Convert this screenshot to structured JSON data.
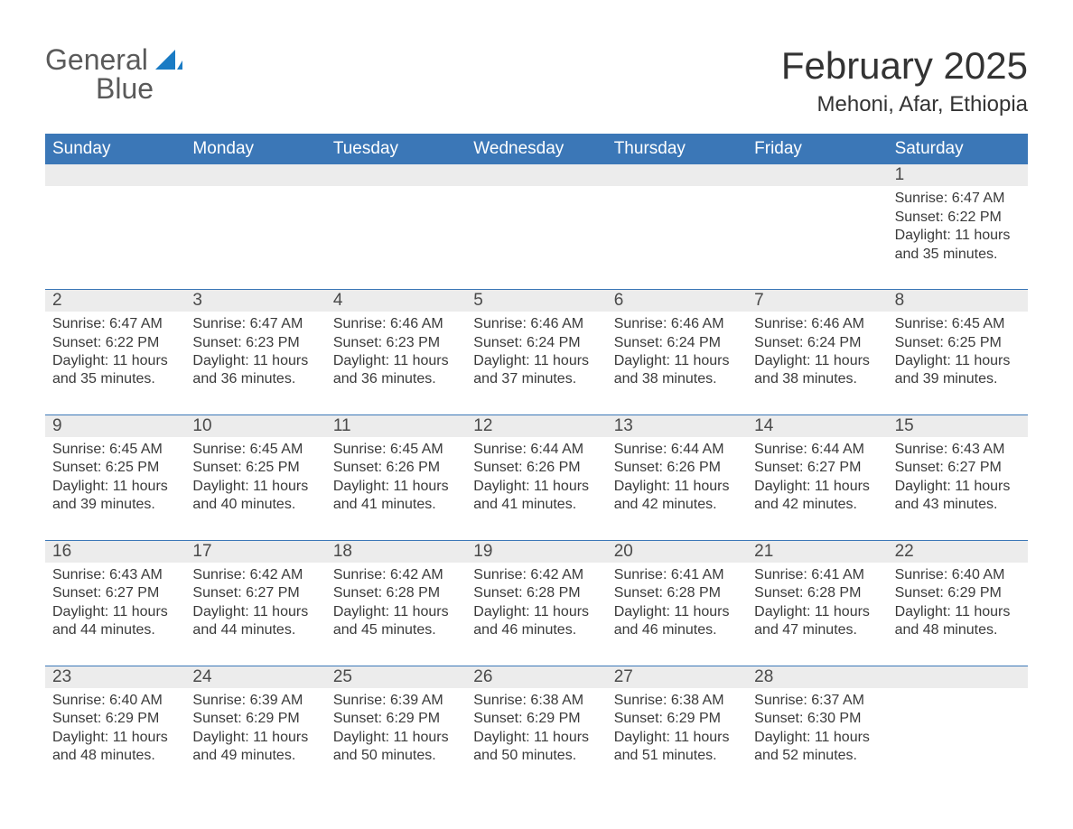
{
  "logo": {
    "word1": "General",
    "word2": "Blue"
  },
  "header": {
    "month_title": "February 2025",
    "location": "Mehoni, Afar, Ethiopia"
  },
  "colors": {
    "header_blue": "#3b77b7",
    "logo_blue": "#1a7bc4",
    "row_gray": "#ececec",
    "text": "#3a3a3a",
    "white": "#ffffff"
  },
  "days_of_week": [
    "Sunday",
    "Monday",
    "Tuesday",
    "Wednesday",
    "Thursday",
    "Friday",
    "Saturday"
  ],
  "weeks": [
    [
      null,
      null,
      null,
      null,
      null,
      null,
      {
        "n": "1",
        "sunrise": "Sunrise: 6:47 AM",
        "sunset": "Sunset: 6:22 PM",
        "daylight1": "Daylight: 11 hours",
        "daylight2": "and 35 minutes."
      }
    ],
    [
      {
        "n": "2",
        "sunrise": "Sunrise: 6:47 AM",
        "sunset": "Sunset: 6:22 PM",
        "daylight1": "Daylight: 11 hours",
        "daylight2": "and 35 minutes."
      },
      {
        "n": "3",
        "sunrise": "Sunrise: 6:47 AM",
        "sunset": "Sunset: 6:23 PM",
        "daylight1": "Daylight: 11 hours",
        "daylight2": "and 36 minutes."
      },
      {
        "n": "4",
        "sunrise": "Sunrise: 6:46 AM",
        "sunset": "Sunset: 6:23 PM",
        "daylight1": "Daylight: 11 hours",
        "daylight2": "and 36 minutes."
      },
      {
        "n": "5",
        "sunrise": "Sunrise: 6:46 AM",
        "sunset": "Sunset: 6:24 PM",
        "daylight1": "Daylight: 11 hours",
        "daylight2": "and 37 minutes."
      },
      {
        "n": "6",
        "sunrise": "Sunrise: 6:46 AM",
        "sunset": "Sunset: 6:24 PM",
        "daylight1": "Daylight: 11 hours",
        "daylight2": "and 38 minutes."
      },
      {
        "n": "7",
        "sunrise": "Sunrise: 6:46 AM",
        "sunset": "Sunset: 6:24 PM",
        "daylight1": "Daylight: 11 hours",
        "daylight2": "and 38 minutes."
      },
      {
        "n": "8",
        "sunrise": "Sunrise: 6:45 AM",
        "sunset": "Sunset: 6:25 PM",
        "daylight1": "Daylight: 11 hours",
        "daylight2": "and 39 minutes."
      }
    ],
    [
      {
        "n": "9",
        "sunrise": "Sunrise: 6:45 AM",
        "sunset": "Sunset: 6:25 PM",
        "daylight1": "Daylight: 11 hours",
        "daylight2": "and 39 minutes."
      },
      {
        "n": "10",
        "sunrise": "Sunrise: 6:45 AM",
        "sunset": "Sunset: 6:25 PM",
        "daylight1": "Daylight: 11 hours",
        "daylight2": "and 40 minutes."
      },
      {
        "n": "11",
        "sunrise": "Sunrise: 6:45 AM",
        "sunset": "Sunset: 6:26 PM",
        "daylight1": "Daylight: 11 hours",
        "daylight2": "and 41 minutes."
      },
      {
        "n": "12",
        "sunrise": "Sunrise: 6:44 AM",
        "sunset": "Sunset: 6:26 PM",
        "daylight1": "Daylight: 11 hours",
        "daylight2": "and 41 minutes."
      },
      {
        "n": "13",
        "sunrise": "Sunrise: 6:44 AM",
        "sunset": "Sunset: 6:26 PM",
        "daylight1": "Daylight: 11 hours",
        "daylight2": "and 42 minutes."
      },
      {
        "n": "14",
        "sunrise": "Sunrise: 6:44 AM",
        "sunset": "Sunset: 6:27 PM",
        "daylight1": "Daylight: 11 hours",
        "daylight2": "and 42 minutes."
      },
      {
        "n": "15",
        "sunrise": "Sunrise: 6:43 AM",
        "sunset": "Sunset: 6:27 PM",
        "daylight1": "Daylight: 11 hours",
        "daylight2": "and 43 minutes."
      }
    ],
    [
      {
        "n": "16",
        "sunrise": "Sunrise: 6:43 AM",
        "sunset": "Sunset: 6:27 PM",
        "daylight1": "Daylight: 11 hours",
        "daylight2": "and 44 minutes."
      },
      {
        "n": "17",
        "sunrise": "Sunrise: 6:42 AM",
        "sunset": "Sunset: 6:27 PM",
        "daylight1": "Daylight: 11 hours",
        "daylight2": "and 44 minutes."
      },
      {
        "n": "18",
        "sunrise": "Sunrise: 6:42 AM",
        "sunset": "Sunset: 6:28 PM",
        "daylight1": "Daylight: 11 hours",
        "daylight2": "and 45 minutes."
      },
      {
        "n": "19",
        "sunrise": "Sunrise: 6:42 AM",
        "sunset": "Sunset: 6:28 PM",
        "daylight1": "Daylight: 11 hours",
        "daylight2": "and 46 minutes."
      },
      {
        "n": "20",
        "sunrise": "Sunrise: 6:41 AM",
        "sunset": "Sunset: 6:28 PM",
        "daylight1": "Daylight: 11 hours",
        "daylight2": "and 46 minutes."
      },
      {
        "n": "21",
        "sunrise": "Sunrise: 6:41 AM",
        "sunset": "Sunset: 6:28 PM",
        "daylight1": "Daylight: 11 hours",
        "daylight2": "and 47 minutes."
      },
      {
        "n": "22",
        "sunrise": "Sunrise: 6:40 AM",
        "sunset": "Sunset: 6:29 PM",
        "daylight1": "Daylight: 11 hours",
        "daylight2": "and 48 minutes."
      }
    ],
    [
      {
        "n": "23",
        "sunrise": "Sunrise: 6:40 AM",
        "sunset": "Sunset: 6:29 PM",
        "daylight1": "Daylight: 11 hours",
        "daylight2": "and 48 minutes."
      },
      {
        "n": "24",
        "sunrise": "Sunrise: 6:39 AM",
        "sunset": "Sunset: 6:29 PM",
        "daylight1": "Daylight: 11 hours",
        "daylight2": "and 49 minutes."
      },
      {
        "n": "25",
        "sunrise": "Sunrise: 6:39 AM",
        "sunset": "Sunset: 6:29 PM",
        "daylight1": "Daylight: 11 hours",
        "daylight2": "and 50 minutes."
      },
      {
        "n": "26",
        "sunrise": "Sunrise: 6:38 AM",
        "sunset": "Sunset: 6:29 PM",
        "daylight1": "Daylight: 11 hours",
        "daylight2": "and 50 minutes."
      },
      {
        "n": "27",
        "sunrise": "Sunrise: 6:38 AM",
        "sunset": "Sunset: 6:29 PM",
        "daylight1": "Daylight: 11 hours",
        "daylight2": "and 51 minutes."
      },
      {
        "n": "28",
        "sunrise": "Sunrise: 6:37 AM",
        "sunset": "Sunset: 6:30 PM",
        "daylight1": "Daylight: 11 hours",
        "daylight2": "and 52 minutes."
      },
      null
    ]
  ]
}
